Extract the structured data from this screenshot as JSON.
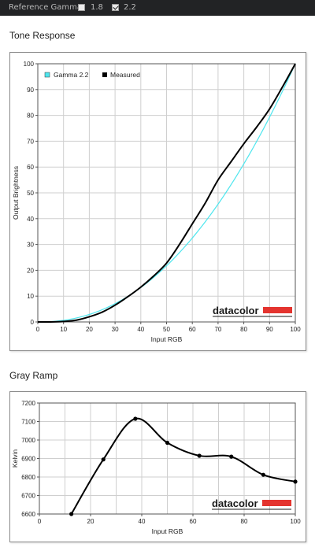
{
  "topbar": {
    "label": "Reference Gamma:",
    "options": [
      {
        "label": "1.8",
        "checked": false
      },
      {
        "label": "2.2",
        "checked": true
      }
    ]
  },
  "tone": {
    "section_title": "Tone Response",
    "chart_data": {
      "type": "line",
      "xlabel": "Input RGB",
      "ylabel": "Output Brightness",
      "xlim": [
        0,
        100
      ],
      "ylim": [
        0,
        100
      ],
      "xticks": [
        0,
        10,
        20,
        30,
        40,
        50,
        60,
        70,
        80,
        90,
        100
      ],
      "yticks": [
        0,
        10,
        20,
        30,
        40,
        50,
        60,
        70,
        80,
        90,
        100
      ],
      "grid": true,
      "legend_position": "top-left",
      "series": [
        {
          "name": "Gamma 2.2",
          "color": "#4ee6ee",
          "function": "gamma",
          "x": [
            0,
            5,
            10,
            15,
            20,
            25,
            30,
            35,
            40,
            45,
            50,
            55,
            60,
            65,
            70,
            75,
            80,
            85,
            90,
            95,
            100
          ],
          "y": [
            0,
            0.1,
            0.6,
            1.5,
            2.9,
            4.7,
            7.1,
            9.9,
            13.3,
            17.3,
            21.8,
            26.8,
            32.5,
            38.7,
            45.6,
            53.1,
            61.2,
            69.9,
            79.3,
            89.3,
            100
          ]
        },
        {
          "name": "Measured",
          "color": "#000000",
          "x": [
            0,
            5,
            10,
            15,
            20,
            25,
            30,
            35,
            40,
            45,
            50,
            55,
            60,
            65,
            70,
            75,
            80,
            85,
            90,
            95,
            100
          ],
          "y": [
            0,
            0,
            0.2,
            0.7,
            2.0,
            3.8,
            6.5,
            9.8,
            13.5,
            17.8,
            22.8,
            30,
            38,
            46,
            55,
            62,
            69,
            75.5,
            82.5,
            91,
            100
          ]
        }
      ]
    },
    "watermark": "datacolor",
    "brand_color": "#e4342f"
  },
  "gray": {
    "section_title": "Gray Ramp",
    "chart_data": {
      "type": "line",
      "xlabel": "Input RGB",
      "ylabel": "Kelvin",
      "xlim": [
        0,
        100
      ],
      "ylim": [
        6600,
        7200
      ],
      "xticks": [
        0,
        20,
        40,
        60,
        80,
        100
      ],
      "yticks": [
        6600,
        6700,
        6800,
        6900,
        7000,
        7100,
        7200
      ],
      "grid": true,
      "series": [
        {
          "color": "#000000",
          "x": [
            12.5,
            25,
            37.5,
            50,
            62.5,
            75,
            87.5,
            100
          ],
          "y": [
            6600,
            6895,
            7115,
            6985,
            6915,
            6910,
            6812,
            6775
          ]
        }
      ]
    },
    "watermark": "datacolor",
    "brand_color": "#e4342f"
  }
}
